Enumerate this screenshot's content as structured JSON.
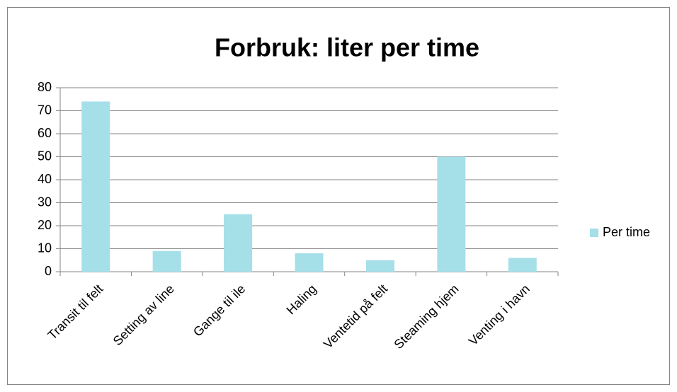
{
  "chart_data": {
    "type": "bar",
    "title": "Forbruk: liter per time",
    "categories": [
      "Transit til felt",
      "Setting av line",
      "Gange til ile",
      "Haling",
      "Ventetid på felt",
      "Steaming hjem",
      "Venting i havn"
    ],
    "series": [
      {
        "name": "Per time",
        "color": "#a5dfe8",
        "values": [
          74,
          9,
          25,
          8,
          5,
          50,
          6
        ]
      }
    ],
    "ylim": [
      0,
      80
    ],
    "yticks": [
      0,
      10,
      20,
      30,
      40,
      50,
      60,
      70,
      80
    ],
    "grid": true,
    "legend": "right"
  }
}
